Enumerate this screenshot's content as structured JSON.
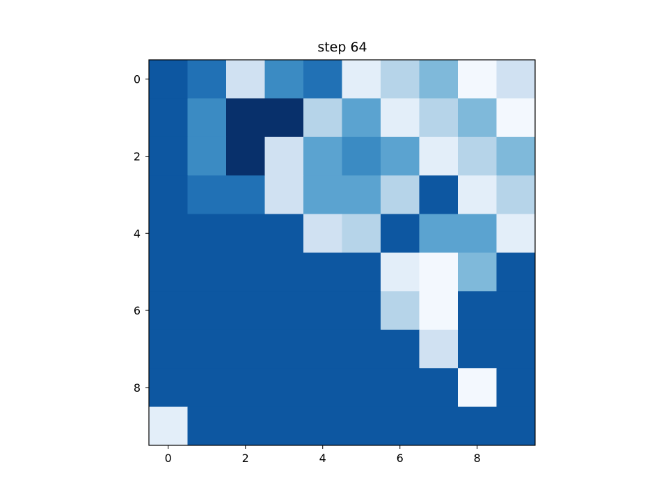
{
  "chart_data": {
    "type": "heatmap",
    "title": "step 64",
    "xlabel": "",
    "ylabel": "",
    "colormap": "Blues",
    "x_ticks": [
      "0",
      "2",
      "4",
      "6",
      "8"
    ],
    "y_ticks": [
      "0",
      "2",
      "4",
      "6",
      "8"
    ],
    "x_range": [
      -0.5,
      9.5
    ],
    "y_range": [
      -0.5,
      9.5
    ],
    "y_inverted": true,
    "grid": false,
    "legend": "none",
    "vmin": 0,
    "vmax": 1,
    "values": [
      [
        0.85,
        0.75,
        0.2,
        0.65,
        0.75,
        0.1,
        0.3,
        0.45,
        0.02,
        0.2
      ],
      [
        0.85,
        0.65,
        1.0,
        1.0,
        0.3,
        0.55,
        0.1,
        0.3,
        0.45,
        0.02
      ],
      [
        0.85,
        0.65,
        1.0,
        0.2,
        0.55,
        0.65,
        0.55,
        0.1,
        0.3,
        0.45
      ],
      [
        0.85,
        0.75,
        0.75,
        0.2,
        0.55,
        0.55,
        0.3,
        0.85,
        0.1,
        0.3
      ],
      [
        0.85,
        0.85,
        0.85,
        0.85,
        0.2,
        0.3,
        0.85,
        0.55,
        0.55,
        0.1
      ],
      [
        0.85,
        0.85,
        0.85,
        0.85,
        0.85,
        0.85,
        0.1,
        0.02,
        0.45,
        0.85
      ],
      [
        0.85,
        0.85,
        0.85,
        0.85,
        0.85,
        0.85,
        0.3,
        0.02,
        0.85,
        0.85
      ],
      [
        0.85,
        0.85,
        0.85,
        0.85,
        0.85,
        0.85,
        0.85,
        0.2,
        0.85,
        0.85
      ],
      [
        0.85,
        0.85,
        0.85,
        0.85,
        0.85,
        0.85,
        0.85,
        0.85,
        0.02,
        0.85
      ],
      [
        0.1,
        0.85,
        0.85,
        0.85,
        0.85,
        0.85,
        0.85,
        0.85,
        0.85,
        0.85
      ]
    ]
  }
}
